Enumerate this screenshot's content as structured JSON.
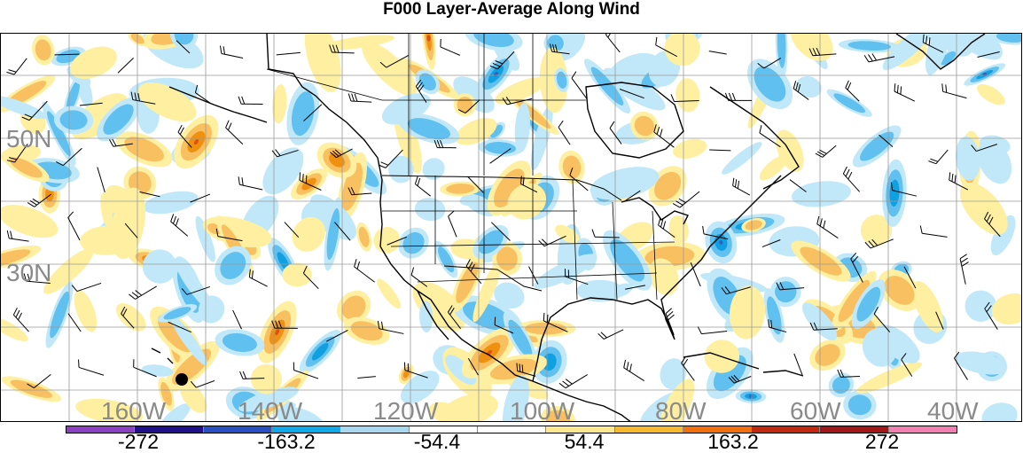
{
  "title": "F000 Layer-Average Along Wind",
  "map": {
    "latitude_labels": [
      "50N",
      "30N"
    ],
    "longitude_labels": [
      "160W",
      "140W",
      "120W",
      "100W",
      "80W",
      "60W",
      "40W"
    ],
    "marker": "black-dot",
    "positive_colors": [
      "#fef0a0",
      "#f8c060",
      "#f09010",
      "#e05010",
      "#c01010",
      "#901010",
      "#f080b0"
    ],
    "negative_colors": [
      "#c0e8f8",
      "#60c0f0",
      "#10a0e0",
      "#3060c0",
      "#102080",
      "#7030a0"
    ]
  },
  "colorbar": {
    "colors": [
      "#8a40c0",
      "#20108a",
      "#2850c0",
      "#10a8e8",
      "#a8d8f0",
      "#ffffff",
      "#ffffff",
      "#fce890",
      "#f8b830",
      "#f07010",
      "#c02810",
      "#a01818",
      "#f080b0"
    ],
    "labels": [
      "-272",
      "-163.2",
      "-54.4",
      "54.4",
      "163.2",
      "272"
    ]
  }
}
